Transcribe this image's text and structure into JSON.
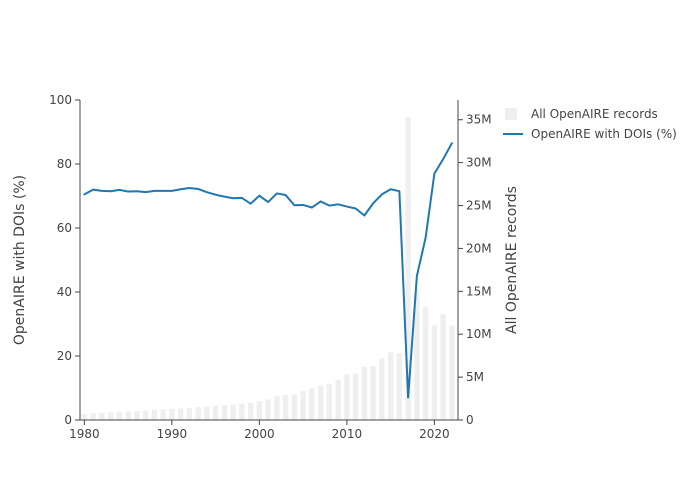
{
  "chart_data": {
    "type": "bar+line",
    "x": [
      1980,
      1981,
      1982,
      1983,
      1984,
      1985,
      1986,
      1987,
      1988,
      1989,
      1990,
      1991,
      1992,
      1993,
      1994,
      1995,
      1996,
      1997,
      1998,
      1999,
      2000,
      2001,
      2002,
      2003,
      2004,
      2005,
      2006,
      2007,
      2008,
      2009,
      2010,
      2011,
      2012,
      2013,
      2014,
      2015,
      2016,
      2017,
      2018,
      2019,
      2020,
      2021,
      2022
    ],
    "series": [
      {
        "name": "All OpenAIRE records",
        "kind": "bar",
        "axis": "right",
        "color": "#efefef",
        "values": [
          0.7,
          0.8,
          0.85,
          0.9,
          0.95,
          1.0,
          1.05,
          1.1,
          1.2,
          1.25,
          1.3,
          1.35,
          1.4,
          1.5,
          1.55,
          1.65,
          1.75,
          1.8,
          1.9,
          2.0,
          2.2,
          2.4,
          2.8,
          2.9,
          3.0,
          3.4,
          3.7,
          4.0,
          4.2,
          4.7,
          5.3,
          5.4,
          6.2,
          6.3,
          7.2,
          7.9,
          7.8,
          35.3,
          15.1,
          13.2,
          11.0,
          12.3,
          11.0
        ]
      },
      {
        "name": "OpenAIRE with DOIs (%)",
        "kind": "line",
        "axis": "left",
        "color": "#1f77b4",
        "values": [
          70.5,
          72.0,
          71.6,
          71.5,
          71.9,
          71.4,
          71.5,
          71.2,
          71.6,
          71.6,
          71.6,
          72.1,
          72.5,
          72.2,
          71.2,
          70.4,
          69.8,
          69.3,
          69.4,
          67.6,
          70.1,
          68.1,
          70.8,
          70.3,
          67.1,
          67.2,
          66.4,
          68.3,
          67.0,
          67.4,
          66.7,
          66.1,
          63.9,
          67.7,
          70.5,
          72.1,
          71.5,
          7.0,
          45.0,
          57.0,
          77.0,
          81.5,
          86.5
        ]
      }
    ],
    "ylabel_left": "OpenAIRE with DOIs (%)",
    "ylabel_right": "All OpenAIRE records",
    "ylim_left": [
      0,
      100
    ],
    "ylim_right": [
      0,
      37.3
    ],
    "xlim": [
      1979.5,
      2022.7
    ],
    "x_ticks": [
      1980,
      1990,
      2000,
      2010,
      2020
    ],
    "y_left_ticks": [
      "0",
      "20",
      "40",
      "60",
      "80",
      "100"
    ],
    "y_right_ticks": [
      "0",
      "5M",
      "10M",
      "15M",
      "20M",
      "25M",
      "30M",
      "35M"
    ],
    "legend": {
      "placement": "top-right",
      "entries": [
        "All OpenAIRE records",
        "OpenAIRE with DOIs (%)"
      ]
    },
    "grid": false
  }
}
